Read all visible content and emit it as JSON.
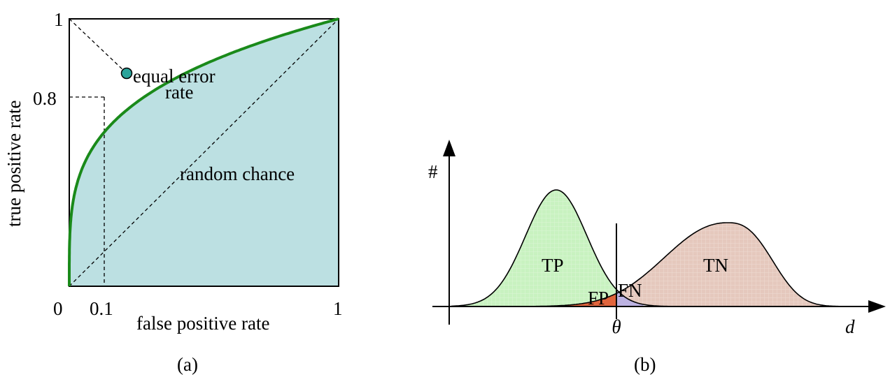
{
  "panel_a": {
    "caption": "(a)",
    "xlabel": "false positive rate",
    "ylabel": "true positive rate",
    "ticks": {
      "x_zero": "0",
      "x_point": "0.1",
      "x_one": "1",
      "y_one": "1",
      "y_point": "0.8"
    },
    "annotations": {
      "eer_line1": "equal error",
      "eer_line2": "rate",
      "random": "random chance"
    },
    "colors": {
      "area": "#bce0e2",
      "curve": "#1a8a1a",
      "eer_point": "#2aa39a"
    }
  },
  "panel_b": {
    "caption": "(b)",
    "y_axis_label": "#",
    "x_axis_label": "d",
    "threshold_label": "θ",
    "regions": {
      "tp": "TP",
      "tn": "TN",
      "fp": "FP",
      "fn": "FN"
    },
    "colors": {
      "tp": "#c8f2c0",
      "tn": "#e5c8bd",
      "fp": "#e0643c",
      "fn": "#b0a4dc"
    }
  }
}
